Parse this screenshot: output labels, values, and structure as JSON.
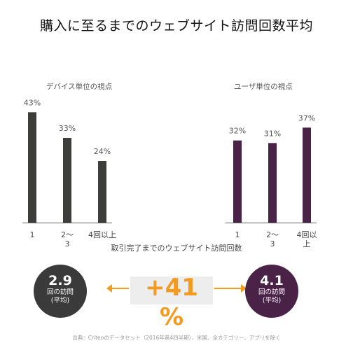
{
  "title": "購入に至るまでのウェブサイト訪問回数平均",
  "chart_data": [
    {
      "type": "bar",
      "subtitle": "デバイス単位の視点",
      "categories": [
        "1",
        "2～3",
        "4回以上"
      ],
      "values": [
        43,
        33,
        24
      ],
      "value_labels": [
        "43%",
        "33%",
        "24%"
      ],
      "color": "#3d3d3b",
      "ylim": [
        0,
        45
      ]
    },
    {
      "type": "bar",
      "subtitle": "ユーザ単位の視点",
      "categories": [
        "1",
        "2～3",
        "4回以上"
      ],
      "values": [
        32,
        31,
        37
      ],
      "value_labels": [
        "32%",
        "31%",
        "37%"
      ],
      "color": "#4a2147",
      "ylim": [
        0,
        45
      ]
    }
  ],
  "xlabel": "取引完了までのウェブサイト訪問回数",
  "x_labels_left": [
    "1",
    "2～\n3",
    "4回以上"
  ],
  "x_labels_right": [
    "1",
    "2～\n3",
    "4回以\n上"
  ],
  "summary": {
    "left": {
      "value": "2.9",
      "label": "回の訪問\n(平均)"
    },
    "right": {
      "value": "4.1",
      "label": "回の訪問\n(平均)"
    },
    "delta": "+41",
    "delta_unit": "%"
  },
  "source": "出典：Criteoのデータセット（2016年第4四半期）、米国、全カテゴリー、アプリを除く"
}
